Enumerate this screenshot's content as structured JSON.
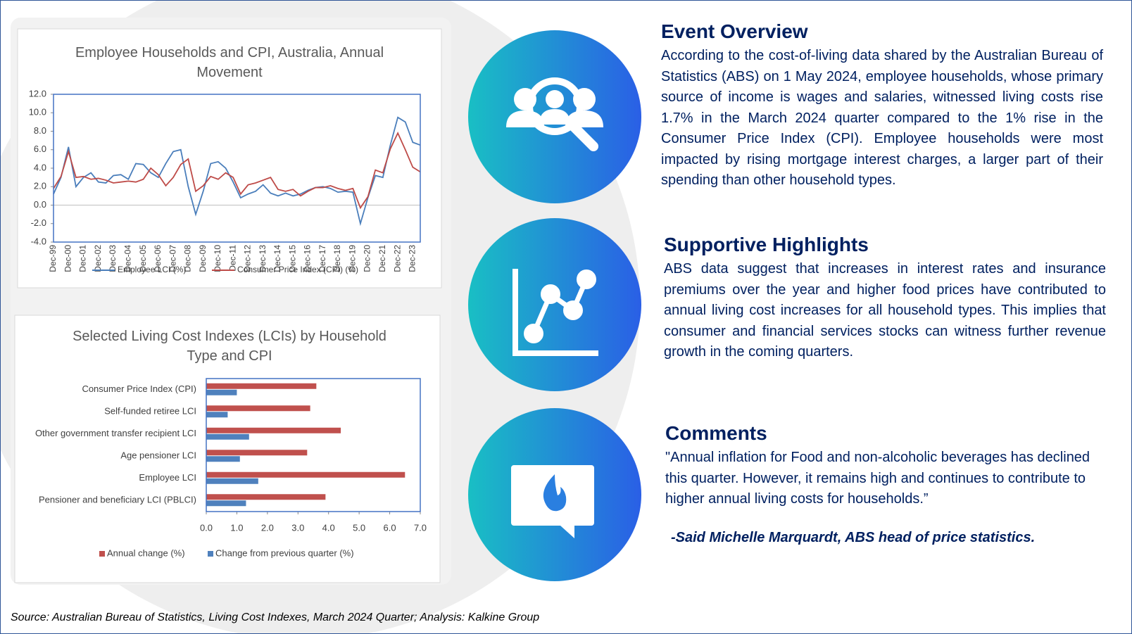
{
  "chart_data": [
    {
      "type": "line",
      "title": "Employee Households and CPI, Australia, Annual Movement",
      "categories": [
        "Dec-99",
        null,
        "Dec-00",
        null,
        "Dec-01",
        null,
        "Dec-02",
        null,
        "Dec-03",
        null,
        "Dec-04",
        null,
        "Dec-05",
        null,
        "Dec-06",
        null,
        "Dec-07",
        null,
        "Dec-08",
        null,
        "Dec-09",
        null,
        "Dec-10",
        null,
        "Dec-11",
        null,
        "Dec-12",
        null,
        "Dec-13",
        null,
        "Dec-14",
        null,
        "Dec-15",
        null,
        "Dec-16",
        null,
        "Dec-17",
        null,
        "Dec-18",
        null,
        "Dec-19",
        null,
        "Dec-20",
        null,
        "Dec-21",
        null,
        "Dec-22",
        null,
        "Dec-23",
        null
      ],
      "series": [
        {
          "name": "Employee LCI (%)",
          "color": "#4a7ebb",
          "values": [
            1.2,
            3.0,
            6.3,
            2.0,
            3.0,
            3.5,
            2.5,
            2.4,
            3.2,
            3.3,
            2.8,
            4.5,
            4.4,
            3.5,
            3.0,
            4.5,
            5.8,
            6.0,
            2.0,
            -1.0,
            1.5,
            4.5,
            4.7,
            4.0,
            2.5,
            0.8,
            1.2,
            1.5,
            2.2,
            1.3,
            1.0,
            1.3,
            1.0,
            1.2,
            1.6,
            1.9,
            2.0,
            1.8,
            1.4,
            1.5,
            1.4,
            -2.0,
            0.8,
            3.2,
            3.0,
            6.5,
            9.5,
            9.0,
            6.8,
            6.5
          ]
        },
        {
          "name": "Consumer Price Index (CPI) (%)",
          "color": "#be4b48",
          "values": [
            1.8,
            3.1,
            5.8,
            3.0,
            3.1,
            2.8,
            2.9,
            2.7,
            2.4,
            2.5,
            2.6,
            2.5,
            2.8,
            4.0,
            3.3,
            2.1,
            3.0,
            4.4,
            5.0,
            1.5,
            2.1,
            3.1,
            2.8,
            3.5,
            3.0,
            1.2,
            2.2,
            2.4,
            2.7,
            3.0,
            1.7,
            1.5,
            1.7,
            1.0,
            1.5,
            1.9,
            1.9,
            2.1,
            1.8,
            1.6,
            1.8,
            -0.3,
            0.9,
            3.8,
            3.5,
            6.1,
            7.8,
            6.0,
            4.1,
            3.6
          ]
        }
      ],
      "ylim": [
        -4,
        12
      ],
      "yticks": [
        {
          "value": -4,
          "label": "-4.0"
        },
        {
          "value": -2,
          "label": "-2.0"
        },
        {
          "value": 0,
          "label": "0.0"
        },
        {
          "value": 2,
          "label": "2.0"
        },
        {
          "value": 4,
          "label": "4.0"
        },
        {
          "value": 6,
          "label": "6.0"
        },
        {
          "value": 8,
          "label": "8.0"
        },
        {
          "value": 10,
          "label": "10.0"
        },
        {
          "value": 12,
          "label": "12.0"
        }
      ],
      "legend": "bottom"
    },
    {
      "type": "hbar",
      "title": "Selected Living Cost Indexes (LCIs) by Household Type and CPI",
      "categories": [
        "Consumer Price Index (CPI)",
        "Self-funded retiree LCI",
        "Other government transfer recipient LCI",
        "Age pensioner LCI",
        "Employee LCI",
        "Pensioner and beneficiary LCI (PBLCI)"
      ],
      "series": [
        {
          "name": "Annual change (%)",
          "color": "#c0504d",
          "values": [
            3.6,
            3.4,
            4.4,
            3.3,
            6.5,
            3.9
          ]
        },
        {
          "name": "Change from previous quarter (%)",
          "color": "#4f81bd",
          "values": [
            1.0,
            0.7,
            1.4,
            1.1,
            1.7,
            1.3
          ]
        }
      ],
      "xlim": [
        0,
        7
      ],
      "xticks": [
        {
          "value": 0,
          "label": "0.0"
        },
        {
          "value": 1,
          "label": "1.0"
        },
        {
          "value": 2,
          "label": "2.0"
        },
        {
          "value": 3,
          "label": "3.0"
        },
        {
          "value": 4,
          "label": "4.0"
        },
        {
          "value": 5,
          "label": "5.0"
        },
        {
          "value": 6,
          "label": "6.0"
        },
        {
          "value": 7,
          "label": "7.0"
        }
      ],
      "legend": "bottom"
    }
  ],
  "sections": [
    {
      "heading": "Event Overview",
      "body": "According to the cost-of-living data shared by the Australian Bureau of Statistics (ABS) on 1 May 2024, employee households, whose primary source of income is wages and salaries, witnessed living costs rise 1.7% in the March 2024 quarter compared to the 1% rise in the Consumer Price Index (CPI). Employee households were most impacted by rising mortgage interest charges, a larger part of their spending than other household types."
    },
    {
      "heading": "Supportive Highlights",
      "body": "ABS data suggest that increases in interest rates and insurance premiums over the year and higher food prices have contributed to annual living cost increases for all household types. This implies that consumer and financial services stocks can witness further revenue growth in the coming quarters."
    },
    {
      "heading": "Comments",
      "body": "\"Annual inflation for Food and non-alcoholic beverages has declined this quarter. However, it remains high and continues to contribute to higher annual living costs for households.”",
      "attribution": "-Said Michelle Marquardt, ABS head of price statistics."
    }
  ],
  "source": "Source: Australian Bureau of Statistics, Living Cost Indexes, March 2024 Quarter; Analysis: Kalkine Group"
}
